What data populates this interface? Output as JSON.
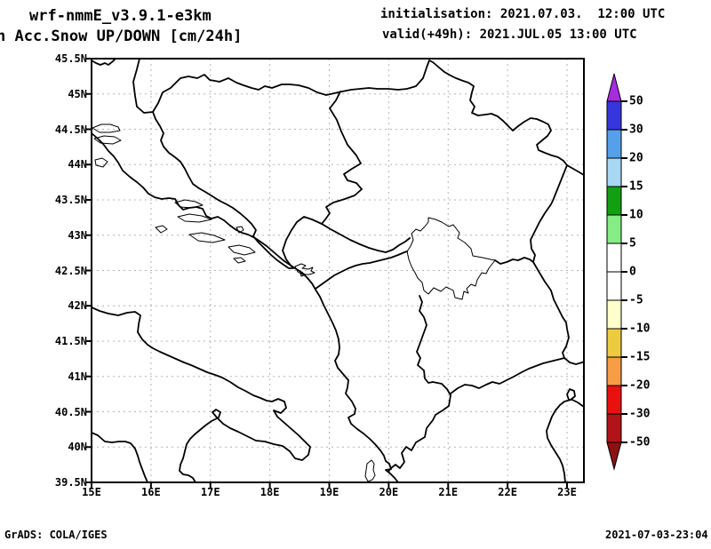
{
  "header": {
    "model_title": "wrf-nmmE_v3.9.1-e3km",
    "product_title": "n Acc.Snow UP/DOWN [cm/24h]",
    "init_label": "initialisation: 2021.07.03.  12:00 UTC",
    "valid_label": "valid(+49h): 2021.JUL.05 13:00 UTC"
  },
  "map": {
    "y_ticks": [
      "45.5N",
      "45N",
      "44.5N",
      "44N",
      "43.5N",
      "43N",
      "42.5N",
      "42N",
      "41.5N",
      "41N",
      "40.5N",
      "40N",
      "39.5N"
    ],
    "x_ticks": [
      "15E",
      "16E",
      "17E",
      "18E",
      "19E",
      "20E",
      "21E",
      "22E",
      "23E"
    ]
  },
  "colorbar": {
    "levels": [
      "50",
      "30",
      "20",
      "15",
      "10",
      "5",
      "0",
      "-5",
      "-10",
      "-15",
      "-20",
      "-30",
      "-50"
    ],
    "segment_colors": [
      "#3636dc",
      "#55a0e8",
      "#a8d8f4",
      "#12a012",
      "#86ec86",
      "#ffffff",
      "#ffffff",
      "#ffffcb",
      "#eccb40",
      "#f79d45",
      "#ea1010",
      "#b11418"
    ],
    "arrow_up_color": "#a62ce2",
    "arrow_down_color": "#8c1113"
  },
  "footer": {
    "left": "GrADS: COLA/IGES",
    "right": "2021-07-03-23:04"
  }
}
